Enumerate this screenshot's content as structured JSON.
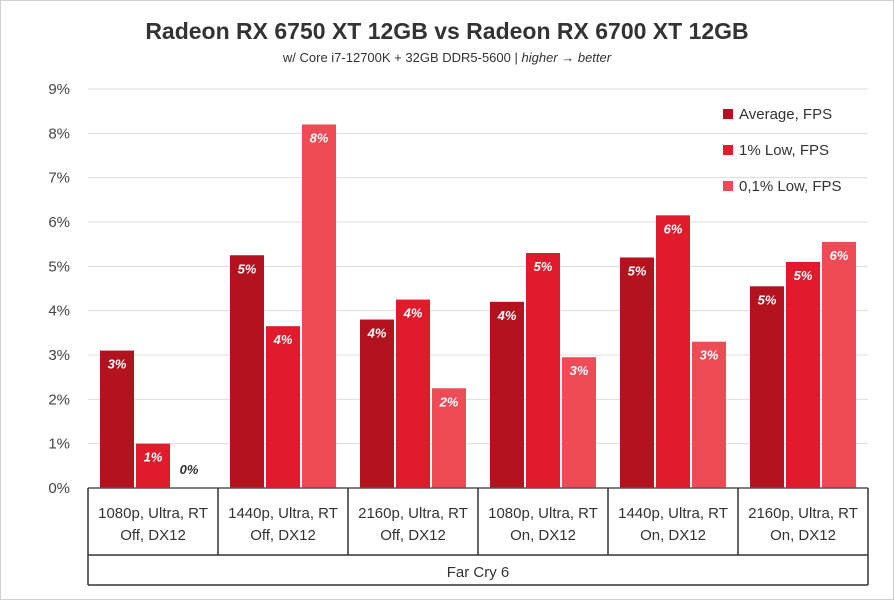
{
  "chart_data": {
    "type": "bar",
    "title": "Radeon RX 6750 XT 12GB vs Radeon RX 6700 XT 12GB",
    "subtitle_prefix": "w/ Core i7-12700K + 32GB DDR5-5600 | ",
    "subtitle_italic": "higher → better",
    "xlabel": "Far Cry 6",
    "ylim": [
      0,
      9
    ],
    "yticks": [
      "0%",
      "1%",
      "2%",
      "3%",
      "4%",
      "5%",
      "6%",
      "7%",
      "8%",
      "9%"
    ],
    "grid": true,
    "legend_position": "top-right",
    "categories": [
      [
        "1080p, Ultra, RT",
        "Off, DX12"
      ],
      [
        "1440p, Ultra, RT",
        "Off, DX12"
      ],
      [
        "2160p, Ultra, RT",
        "Off, DX12"
      ],
      [
        "1080p, Ultra, RT",
        "On, DX12"
      ],
      [
        "1440p, Ultra, RT",
        "On, DX12"
      ],
      [
        "2160p, Ultra, RT",
        "On, DX12"
      ]
    ],
    "series": [
      {
        "name": "Average, FPS",
        "color": "#b3121f",
        "values": [
          3.1,
          5.25,
          3.8,
          4.2,
          5.2,
          4.55
        ],
        "labels": [
          "3%",
          "5%",
          "4%",
          "4%",
          "5%",
          "5%"
        ]
      },
      {
        "name": "1% Low, FPS",
        "color": "#e21b2c",
        "values": [
          1.0,
          3.65,
          4.25,
          5.3,
          6.15,
          5.1
        ],
        "labels": [
          "1%",
          "4%",
          "4%",
          "5%",
          "6%",
          "5%"
        ]
      },
      {
        "name": "0,1% Low, FPS",
        "color": "#ee4b57",
        "values": [
          0.0,
          8.2,
          2.25,
          2.95,
          3.3,
          5.55
        ],
        "labels": [
          "0%",
          "8%",
          "2%",
          "3%",
          "3%",
          "6%"
        ]
      }
    ]
  }
}
